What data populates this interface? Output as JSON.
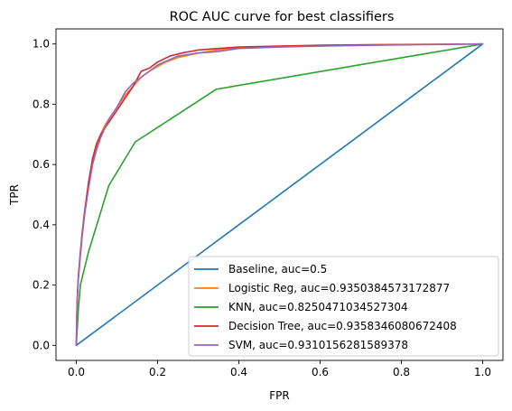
{
  "chart_data": {
    "type": "line",
    "title": "ROC AUC curve for best classifiers",
    "xlabel": "FPR",
    "ylabel": "TPR",
    "xlim": [
      -0.05,
      1.05
    ],
    "ylim": [
      -0.05,
      1.05
    ],
    "xticks": [
      0.0,
      0.2,
      0.4,
      0.6,
      0.8,
      1.0
    ],
    "yticks": [
      0.0,
      0.2,
      0.4,
      0.6,
      0.8,
      1.0
    ],
    "xtick_labels": [
      "0.0",
      "0.2",
      "0.4",
      "0.6",
      "0.8",
      "1.0"
    ],
    "ytick_labels": [
      "0.0",
      "0.2",
      "0.4",
      "0.6",
      "0.8",
      "1.0"
    ],
    "grid": false,
    "legend_position": "lower-right",
    "series": [
      {
        "name": "Baseline, auc=0.5",
        "color": "#1f77b4",
        "x": [
          0,
          1
        ],
        "y": [
          0,
          1
        ]
      },
      {
        "name": "Logistic Reg, auc=0.9350384573172877",
        "color": "#ff7f0e",
        "x": [
          0,
          0.002,
          0.005,
          0.01,
          0.015,
          0.02,
          0.03,
          0.04,
          0.05,
          0.06,
          0.07,
          0.08,
          0.1,
          0.12,
          0.14,
          0.16,
          0.18,
          0.2,
          0.22,
          0.25,
          0.3,
          0.35,
          0.4,
          0.5,
          0.6,
          0.7,
          0.8,
          0.9,
          1.0
        ],
        "y": [
          0,
          0.14,
          0.22,
          0.3,
          0.37,
          0.43,
          0.53,
          0.61,
          0.66,
          0.7,
          0.73,
          0.75,
          0.79,
          0.83,
          0.86,
          0.89,
          0.91,
          0.925,
          0.94,
          0.955,
          0.97,
          0.98,
          0.987,
          0.992,
          0.995,
          0.997,
          0.998,
          0.999,
          1.0
        ]
      },
      {
        "name": "KNN, auc=0.8250471034527304",
        "color": "#2ca02c",
        "x": [
          0,
          0.005,
          0.01,
          0.03,
          0.08,
          0.145,
          0.345,
          1.0
        ],
        "y": [
          0,
          0.12,
          0.2,
          0.31,
          0.53,
          0.675,
          0.85,
          1.0
        ]
      },
      {
        "name": "Decision Tree, auc=0.9358346080672408",
        "color": "#d62728",
        "x": [
          0,
          0.002,
          0.005,
          0.01,
          0.015,
          0.02,
          0.03,
          0.04,
          0.05,
          0.06,
          0.08,
          0.1,
          0.12,
          0.14,
          0.16,
          0.18,
          0.2,
          0.23,
          0.26,
          0.3,
          0.35,
          0.4,
          0.5,
          0.6,
          0.8,
          1.0
        ],
        "y": [
          0,
          0.15,
          0.23,
          0.31,
          0.38,
          0.44,
          0.54,
          0.62,
          0.67,
          0.7,
          0.74,
          0.78,
          0.82,
          0.86,
          0.91,
          0.92,
          0.94,
          0.96,
          0.97,
          0.98,
          0.985,
          0.99,
          0.993,
          0.996,
          0.998,
          1.0
        ]
      },
      {
        "name": "SVM, auc=0.9310156281589378",
        "color": "#9467bd",
        "x": [
          0,
          0.002,
          0.005,
          0.01,
          0.015,
          0.02,
          0.03,
          0.04,
          0.05,
          0.06,
          0.07,
          0.08,
          0.1,
          0.12,
          0.14,
          0.16,
          0.18,
          0.2,
          0.25,
          0.3,
          0.35,
          0.4,
          0.5,
          0.6,
          0.8,
          1.0
        ],
        "y": [
          0,
          0.14,
          0.22,
          0.3,
          0.37,
          0.43,
          0.52,
          0.6,
          0.65,
          0.69,
          0.72,
          0.75,
          0.79,
          0.84,
          0.87,
          0.89,
          0.91,
          0.93,
          0.96,
          0.97,
          0.975,
          0.985,
          0.99,
          0.993,
          0.997,
          1.0
        ]
      }
    ]
  }
}
